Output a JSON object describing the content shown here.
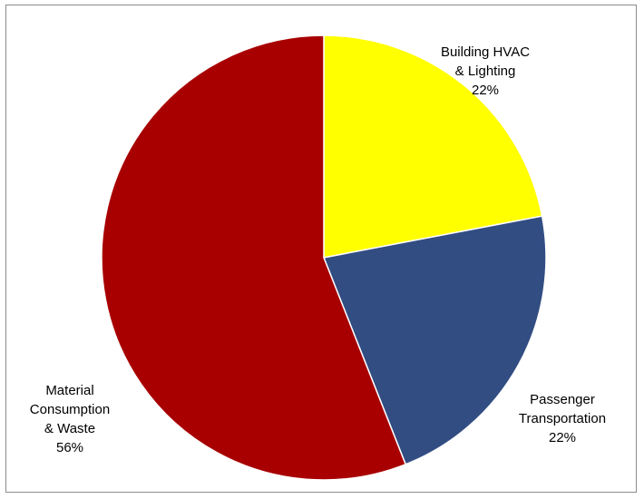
{
  "chart_data": {
    "type": "pie",
    "title": "",
    "slices": [
      {
        "label_lines": [
          "Building HVAC",
          "& Lighting"
        ],
        "value": 22,
        "value_label": "22%",
        "color": "#ffff00"
      },
      {
        "label_lines": [
          "Passenger",
          "Transportation"
        ],
        "value": 22,
        "value_label": "22%",
        "color": "#324d82"
      },
      {
        "label_lines": [
          "Material",
          "Consumption",
          "& Waste"
        ],
        "value": 56,
        "value_label": "56%",
        "color": "#a80000"
      }
    ],
    "start_angle_deg": 0,
    "direction": "clockwise",
    "legend": "none",
    "slice_border_color": "#ffffff"
  }
}
